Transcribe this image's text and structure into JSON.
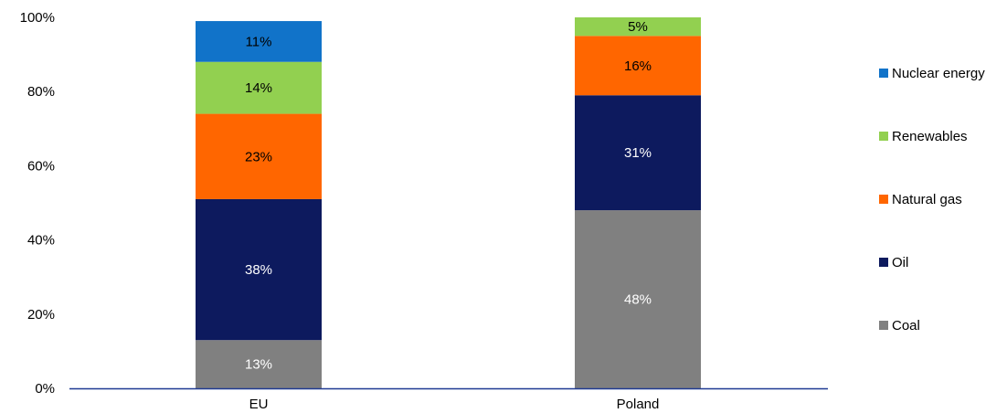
{
  "chart_data": {
    "type": "bar",
    "stacked": true,
    "categories": [
      "EU",
      "Poland"
    ],
    "series": [
      {
        "name": "Coal",
        "values": [
          13,
          48
        ],
        "labels": [
          "13%",
          "48%"
        ],
        "color": "#808080",
        "label_color": "#ffffff"
      },
      {
        "name": "Oil",
        "values": [
          38,
          31
        ],
        "labels": [
          "38%",
          "31%"
        ],
        "color": "#0d1a5e",
        "label_color": "#ffffff"
      },
      {
        "name": "Natural gas",
        "values": [
          23,
          16
        ],
        "labels": [
          "23%",
          "16%"
        ],
        "color": "#ff6600",
        "label_color": "#000000"
      },
      {
        "name": "Renewables",
        "values": [
          14,
          5
        ],
        "labels": [
          "14%",
          "5%"
        ],
        "color": "#92d050",
        "label_color": "#000000"
      },
      {
        "name": "Nuclear energy",
        "values": [
          11,
          0
        ],
        "labels": [
          "11%",
          ""
        ],
        "color": "#1173c9",
        "label_color": "#000000"
      }
    ],
    "y_ticks": [
      "0%",
      "20%",
      "40%",
      "60%",
      "80%",
      "100%"
    ],
    "ylim": [
      0,
      100
    ],
    "legend_order": [
      "Nuclear energy",
      "Renewables",
      "Natural gas",
      "Oil",
      "Coal"
    ],
    "legend_placement": "right",
    "grid": false,
    "axis_color": "#1f3a93"
  }
}
